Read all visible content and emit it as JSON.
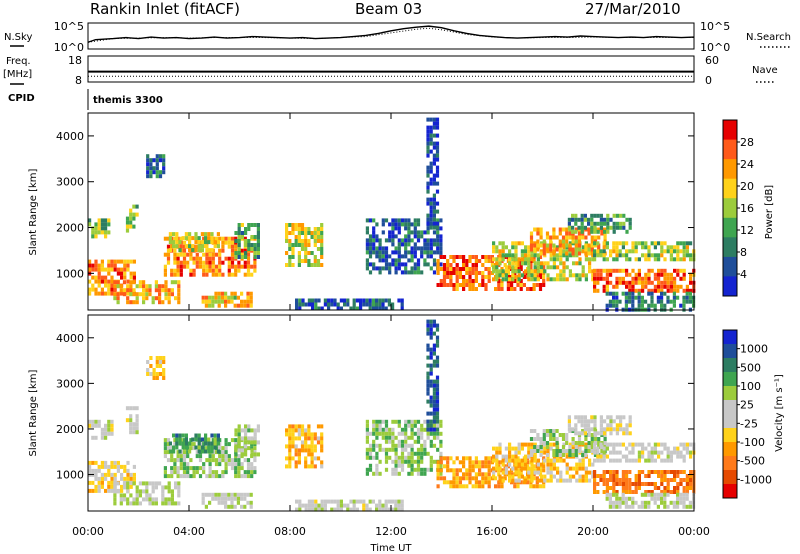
{
  "header": {
    "station": "Rankin Inlet (fitACF)",
    "beam": "Beam 03",
    "date": "27/Mar/2010"
  },
  "noise_panel": {
    "left_label": "N.Sky",
    "left_ticks": [
      "10^5",
      "10^0"
    ],
    "right_label": "N.Search",
    "right_ticks": [
      "10^5",
      "10^0"
    ],
    "left_series": [
      [
        0.0,
        1.3
      ],
      [
        0.3,
        1.8
      ],
      [
        1.0,
        2.0
      ],
      [
        1.5,
        2.2
      ],
      [
        2.0,
        2.0
      ],
      [
        2.5,
        2.3
      ],
      [
        3.0,
        2.1
      ],
      [
        3.5,
        2.2
      ],
      [
        4.0,
        2.0
      ],
      [
        4.5,
        2.1
      ],
      [
        5.0,
        2.3
      ],
      [
        5.5,
        2.1
      ],
      [
        6.0,
        2.2
      ],
      [
        6.5,
        2.4
      ],
      [
        7.0,
        2.3
      ],
      [
        7.5,
        2.2
      ],
      [
        8.0,
        2.1
      ],
      [
        8.5,
        2.2
      ],
      [
        9.0,
        2.0
      ],
      [
        9.5,
        2.1
      ],
      [
        10.0,
        2.2
      ],
      [
        10.5,
        2.4
      ],
      [
        11.0,
        2.6
      ],
      [
        11.5,
        3.0
      ],
      [
        12.0,
        3.5
      ],
      [
        12.5,
        3.9
      ],
      [
        13.0,
        4.2
      ],
      [
        13.5,
        4.4
      ],
      [
        14.0,
        4.1
      ],
      [
        14.5,
        3.5
      ],
      [
        15.0,
        3.0
      ],
      [
        15.5,
        2.6
      ],
      [
        16.0,
        2.4
      ],
      [
        16.5,
        2.2
      ],
      [
        17.0,
        2.1
      ],
      [
        17.5,
        2.2
      ],
      [
        18.0,
        2.3
      ],
      [
        18.5,
        2.4
      ],
      [
        19.0,
        2.3
      ],
      [
        19.5,
        2.5
      ],
      [
        20.0,
        2.4
      ],
      [
        20.5,
        2.3
      ],
      [
        21.0,
        2.2
      ],
      [
        21.5,
        2.3
      ],
      [
        22.0,
        2.2
      ],
      [
        22.5,
        2.4
      ],
      [
        23.0,
        2.3
      ],
      [
        23.5,
        2.2
      ],
      [
        24.0,
        2.3
      ]
    ],
    "right_series": [
      [
        0.0,
        1.3
      ],
      [
        1.0,
        2.0
      ],
      [
        2.0,
        2.1
      ],
      [
        3.0,
        2.2
      ],
      [
        4.0,
        2.1
      ],
      [
        5.0,
        2.2
      ],
      [
        6.0,
        2.2
      ],
      [
        7.0,
        2.2
      ],
      [
        8.0,
        2.1
      ],
      [
        9.0,
        2.0
      ],
      [
        10.0,
        2.2
      ],
      [
        11.0,
        2.4
      ],
      [
        12.0,
        3.1
      ],
      [
        13.0,
        3.8
      ],
      [
        13.5,
        4.0
      ],
      [
        14.0,
        3.7
      ],
      [
        15.0,
        2.8
      ],
      [
        16.0,
        2.3
      ],
      [
        17.0,
        2.1
      ],
      [
        18.0,
        2.2
      ],
      [
        19.0,
        2.2
      ],
      [
        20.0,
        2.3
      ],
      [
        21.0,
        2.2
      ],
      [
        22.0,
        2.2
      ],
      [
        23.0,
        2.2
      ],
      [
        24.0,
        2.2
      ]
    ],
    "left_range": [
      0,
      5
    ]
  },
  "freq_panel": {
    "left_label": "Freq.",
    "left_unit": "[MHz]",
    "left_ticks": [
      "18",
      "8"
    ],
    "left_range": [
      8,
      18
    ],
    "freq_value": 12,
    "right_label": "Nave",
    "right_ticks": [
      "60",
      "0"
    ],
    "nave_value": 18,
    "right_range": [
      0,
      60
    ]
  },
  "cpid": {
    "label": "CPID",
    "value": "themis 3300"
  },
  "power_panel": {
    "ylabel": "Slant Range [km]",
    "yticks": [
      "4000",
      "3000",
      "2000",
      "1000"
    ],
    "colorbar_label": "Power [dB]",
    "colorbar_ticks": [
      "28",
      "24",
      "20",
      "16",
      "12",
      "8",
      "4"
    ],
    "colors": [
      "#e60000",
      "#ff5a1a",
      "#ff9900",
      "#ffd21a",
      "#9ccc3c",
      "#3fa550",
      "#2d7d62",
      "#1f4e9a",
      "#1424d0"
    ]
  },
  "velocity_panel": {
    "ylabel": "Slant Range [km]",
    "yticks": [
      "4000",
      "3000",
      "2000",
      "1000"
    ],
    "colorbar_label": "Velocity [m s⁻¹]",
    "colorbar_ticks": [
      "1000",
      "500",
      "100",
      "25",
      "-25",
      "-100",
      "-500",
      "-1000"
    ],
    "colors": [
      "#1424d0",
      "#1f4e9a",
      "#2d7d62",
      "#3fa550",
      "#9ccc3c",
      "#c8c8c8",
      "#c8c8c8",
      "#ffd21a",
      "#ff9900",
      "#ff7a1a",
      "#e64a00",
      "#e60000"
    ]
  },
  "x_axis": {
    "label": "Time UT",
    "ticks": [
      "00:00",
      "04:00",
      "08:00",
      "12:00",
      "16:00",
      "20:00",
      "00:00"
    ]
  },
  "chart_data": {
    "type": "heatmap",
    "x_range_hours": [
      0,
      24
    ],
    "y_range_km": [
      200,
      4500
    ],
    "power_range_db": [
      0,
      32
    ],
    "velocity_range_ms": [
      -1200,
      1200
    ],
    "regions": [
      {
        "t0": 0.0,
        "t1": 1.8,
        "r0": 600,
        "r1": 1300,
        "power": 24,
        "velocity": -200
      },
      {
        "t0": 0.0,
        "t1": 0.9,
        "r0": 1800,
        "r1": 2200,
        "power": 14,
        "velocity": 20
      },
      {
        "t0": 1.0,
        "t1": 3.6,
        "r0": 350,
        "r1": 850,
        "power": 22,
        "velocity": 150
      },
      {
        "t0": 1.5,
        "t1": 2.0,
        "r0": 1900,
        "r1": 2500,
        "power": 14,
        "velocity": -30
      },
      {
        "t0": 2.3,
        "t1": 3.0,
        "r0": 3100,
        "r1": 3600,
        "power": 8,
        "velocity": -300
      },
      {
        "t0": 3.0,
        "t1": 6.6,
        "r0": 1000,
        "r1": 1800,
        "power": 24,
        "velocity": 300
      },
      {
        "t0": 3.2,
        "t1": 5.2,
        "r0": 1500,
        "r1": 1900,
        "power": 18,
        "velocity": 600
      },
      {
        "t0": 4.5,
        "t1": 6.5,
        "r0": 300,
        "r1": 600,
        "power": 20,
        "velocity": 80
      },
      {
        "t0": 5.8,
        "t1": 6.8,
        "r0": 1400,
        "r1": 2100,
        "power": 12,
        "velocity": 200
      },
      {
        "t0": 7.8,
        "t1": 9.2,
        "r0": 1200,
        "r1": 2100,
        "power": 18,
        "velocity": -400
      },
      {
        "t0": 8.2,
        "t1": 12.5,
        "r0": 250,
        "r1": 450,
        "power": 6,
        "velocity": 40
      },
      {
        "t0": 11.0,
        "t1": 14.0,
        "r0": 1000,
        "r1": 2200,
        "power": 6,
        "velocity": 300
      },
      {
        "t0": 13.4,
        "t1": 13.8,
        "r0": 2000,
        "r1": 4400,
        "power": 4,
        "velocity": 900
      },
      {
        "t0": 13.8,
        "t1": 18.0,
        "r0": 700,
        "r1": 1400,
        "power": 26,
        "velocity": -500
      },
      {
        "t0": 16.0,
        "t1": 20.0,
        "r0": 900,
        "r1": 1700,
        "power": 18,
        "velocity": -300
      },
      {
        "t0": 17.5,
        "t1": 20.5,
        "r0": 1400,
        "r1": 2000,
        "power": 22,
        "velocity": 250
      },
      {
        "t0": 19.0,
        "t1": 21.5,
        "r0": 1900,
        "r1": 2300,
        "power": 12,
        "velocity": -15
      },
      {
        "t0": 20.0,
        "t1": 24.0,
        "r0": 1300,
        "r1": 1700,
        "power": 16,
        "velocity": 10
      },
      {
        "t0": 20.0,
        "t1": 24.0,
        "r0": 600,
        "r1": 1100,
        "power": 26,
        "velocity": -700
      },
      {
        "t0": 20.5,
        "t1": 24.0,
        "r0": 250,
        "r1": 600,
        "power": 8,
        "velocity": 150
      }
    ]
  }
}
